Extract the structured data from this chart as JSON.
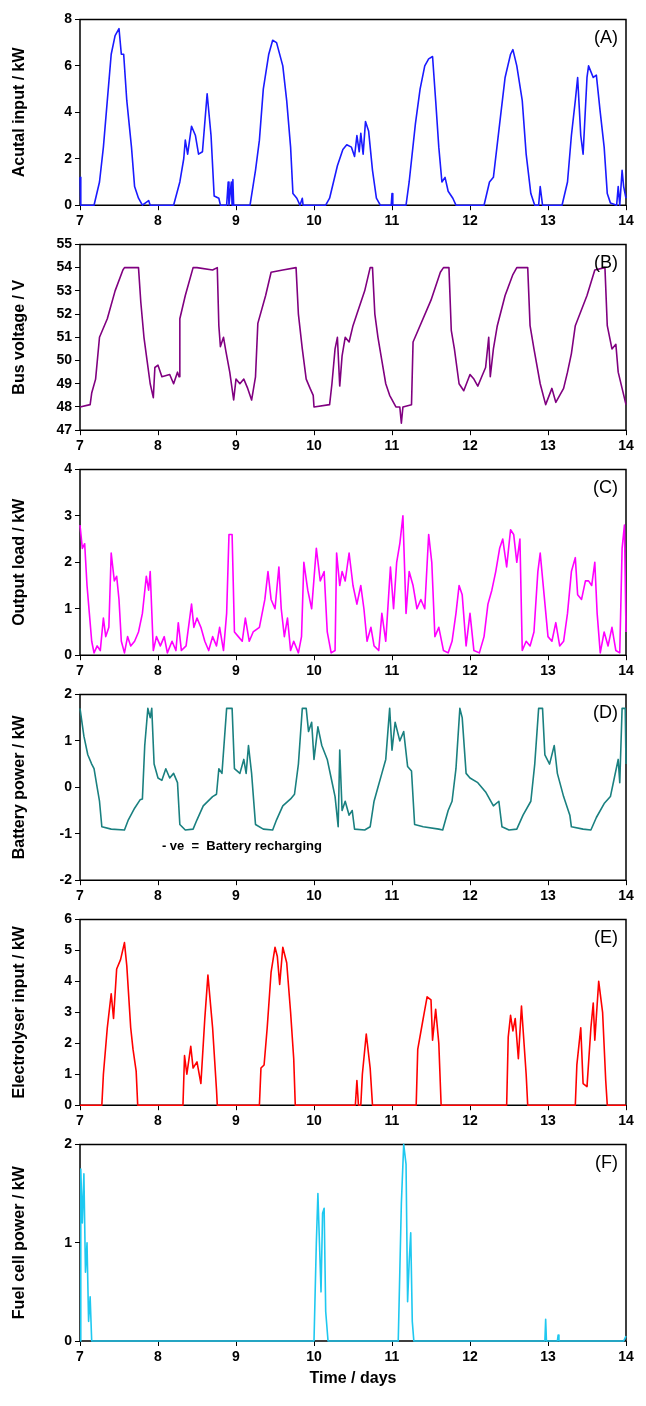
{
  "chart_data": [
    {
      "type": "line",
      "ylabel": "Acutal input / kW",
      "annotations": [
        "(A)"
      ],
      "xlim": [
        7,
        14
      ],
      "xticks": [
        7,
        8,
        9,
        10,
        11,
        12,
        13,
        14
      ],
      "ylim": [
        0,
        8
      ],
      "yticks": [
        0,
        2,
        4,
        6,
        8
      ],
      "x": [
        7.0,
        7.01,
        7.18,
        7.25,
        7.3,
        7.35,
        7.4,
        7.45,
        7.5,
        7.53,
        7.56,
        7.6,
        7.66,
        7.7,
        7.75,
        7.8,
        7.88,
        7.9,
        8.2,
        8.28,
        8.33,
        8.35,
        8.38,
        8.43,
        8.48,
        8.52,
        8.57,
        8.63,
        8.68,
        8.72,
        8.78,
        8.8,
        8.88,
        8.9,
        8.91,
        8.94,
        8.95,
        8.96,
        8.97,
        9.18,
        9.25,
        9.3,
        9.35,
        9.42,
        9.47,
        9.52,
        9.6,
        9.65,
        9.7,
        9.73,
        9.78,
        9.82,
        9.85,
        9.86,
        10.15,
        10.2,
        10.25,
        10.3,
        10.37,
        10.42,
        10.48,
        10.52,
        10.55,
        10.58,
        10.6,
        10.63,
        10.66,
        10.7,
        10.75,
        10.8,
        10.85,
        10.99,
        11.0,
        11.01,
        11.18,
        11.22,
        11.3,
        11.36,
        11.42,
        11.47,
        11.52,
        11.56,
        11.6,
        11.64,
        11.68,
        11.72,
        11.78,
        11.82,
        12.18,
        12.25,
        12.3,
        12.38,
        12.45,
        12.52,
        12.55,
        12.6,
        12.67,
        12.72,
        12.78,
        12.83,
        12.88,
        12.9,
        12.93,
        13.18,
        13.25,
        13.3,
        13.35,
        13.38,
        13.42,
        13.45,
        13.5,
        13.52,
        13.58,
        13.62,
        13.67,
        13.72,
        13.76,
        13.8,
        13.88,
        13.9,
        13.92,
        13.95,
        13.97,
        14.0
      ],
      "series": [
        {
          "color": "#1a1aff",
          "values": [
            1.2,
            0,
            0,
            1,
            2.5,
            4.5,
            6.5,
            7.3,
            7.6,
            6.5,
            6.5,
            4.5,
            2.5,
            0.8,
            0.3,
            0,
            0.2,
            0,
            0,
            1,
            2.0,
            2.8,
            2.2,
            3.4,
            3.0,
            2.2,
            2.3,
            4.8,
            3.0,
            0.4,
            0.3,
            0,
            0,
            1,
            0,
            1,
            0,
            1.1,
            0,
            0,
            1.5,
            2.8,
            5,
            6.5,
            7.1,
            7.0,
            6.0,
            4.5,
            2.5,
            0.5,
            0.3,
            0,
            0.3,
            0,
            0,
            0.3,
            1,
            1.7,
            2.4,
            2.6,
            2.5,
            2.1,
            3.0,
            2.3,
            3.1,
            2.2,
            3.6,
            3.2,
            1.5,
            0.3,
            0,
            0,
            0.5,
            0,
            0,
            1,
            3.5,
            5,
            6,
            6.3,
            6.4,
            4.5,
            2.5,
            1,
            1.2,
            0.6,
            0.3,
            0,
            0,
            1,
            1.2,
            3.5,
            5.5,
            6.5,
            6.7,
            6.0,
            4.5,
            2.2,
            0.5,
            0,
            0,
            0.8,
            0,
            0,
            1,
            3.0,
            4.5,
            5.5,
            3.0,
            2.2,
            5.5,
            6.0,
            5.5,
            5.6,
            4.0,
            2.5,
            0.5,
            0.1,
            0,
            0.8,
            0,
            1.5,
            0.8,
            0.3
          ]
        }
      ]
    },
    {
      "type": "line",
      "ylabel": "Bus voltage / V",
      "annotations": [
        "(B)"
      ],
      "xlim": [
        7,
        14
      ],
      "xticks": [
        7,
        8,
        9,
        10,
        11,
        12,
        13,
        14
      ],
      "ylim": [
        47,
        55
      ],
      "yticks": [
        47,
        48,
        49,
        50,
        51,
        52,
        53,
        54,
        55
      ],
      "x": [
        7.0,
        7.13,
        7.15,
        7.2,
        7.25,
        7.35,
        7.45,
        7.55,
        7.57,
        7.75,
        7.78,
        7.82,
        7.86,
        7.9,
        7.94,
        7.96,
        8.0,
        8.05,
        8.15,
        8.2,
        8.25,
        8.27,
        8.28,
        8.35,
        8.45,
        8.5,
        8.7,
        8.76,
        8.78,
        8.8,
        8.84,
        8.87,
        8.92,
        8.97,
        9.0,
        9.05,
        9.1,
        9.15,
        9.2,
        9.25,
        9.28,
        9.38,
        9.45,
        9.6,
        9.77,
        9.8,
        9.85,
        9.9,
        9.95,
        9.99,
        10.0,
        10.2,
        10.23,
        10.27,
        10.3,
        10.33,
        10.36,
        10.4,
        10.45,
        10.5,
        10.55,
        10.65,
        10.72,
        10.75,
        10.78,
        10.82,
        10.87,
        10.92,
        10.97,
        11.05,
        11.1,
        11.12,
        11.14,
        11.25,
        11.27,
        11.5,
        11.62,
        11.66,
        11.73,
        11.76,
        11.8,
        11.86,
        11.92,
        12.0,
        12.05,
        12.1,
        12.15,
        12.2,
        12.24,
        12.26,
        12.3,
        12.35,
        12.45,
        12.55,
        12.6,
        12.74,
        12.77,
        12.82,
        12.9,
        12.97,
        13.05,
        13.1,
        13.2,
        13.25,
        13.3,
        13.35,
        13.5,
        13.6,
        13.73,
        13.76,
        13.82,
        13.87,
        13.9,
        13.95,
        14.0
      ],
      "series": [
        {
          "color": "#800080",
          "values": [
            48,
            48.1,
            48.6,
            49.2,
            51,
            51.8,
            53,
            53.9,
            54,
            54,
            52.5,
            51,
            50,
            49,
            48.4,
            49.7,
            49.8,
            49.3,
            49.4,
            49.0,
            49.5,
            49.3,
            51.8,
            52.8,
            54,
            54,
            53.9,
            54,
            51.5,
            50.6,
            51,
            50.4,
            49.5,
            48.3,
            49.2,
            49.0,
            49.2,
            48.8,
            48.3,
            49.3,
            51.6,
            52.8,
            53.8,
            53.9,
            54,
            52,
            50.5,
            49.2,
            48.8,
            48.5,
            48,
            48.1,
            49,
            50.5,
            51,
            48.9,
            50.2,
            51,
            50.8,
            51.5,
            52,
            53,
            54,
            54,
            52,
            51,
            50,
            49.0,
            48.5,
            48.0,
            48.0,
            47.3,
            48.0,
            48.1,
            50.8,
            52.6,
            53.8,
            54,
            54,
            51.3,
            50.5,
            49.0,
            48.7,
            49.4,
            49.2,
            48.9,
            49.3,
            49.7,
            51,
            49.3,
            50.5,
            51.5,
            52.8,
            53.7,
            54,
            54,
            51.5,
            50.5,
            49.0,
            48.1,
            48.8,
            48.2,
            48.8,
            49.5,
            50.3,
            51.5,
            52.8,
            53.9,
            54,
            51.5,
            50.5,
            50.7,
            49.5,
            48.8,
            48.1
          ]
        }
      ]
    },
    {
      "type": "line",
      "ylabel": "Output load / kW",
      "annotations": [
        "(C)"
      ],
      "xlim": [
        7,
        14
      ],
      "xticks": [
        7,
        8,
        9,
        10,
        11,
        12,
        13,
        14
      ],
      "ylim": [
        0,
        4
      ],
      "yticks": [
        0,
        1,
        2,
        3,
        4
      ],
      "x": [
        7.0,
        7.03,
        7.06,
        7.09,
        7.12,
        7.15,
        7.18,
        7.22,
        7.26,
        7.3,
        7.33,
        7.37,
        7.4,
        7.44,
        7.47,
        7.5,
        7.53,
        7.57,
        7.61,
        7.65,
        7.7,
        7.75,
        7.8,
        7.85,
        7.88,
        7.9,
        7.94,
        7.98,
        8.03,
        8.08,
        8.12,
        8.18,
        8.23,
        8.26,
        8.3,
        8.36,
        8.43,
        8.46,
        8.5,
        8.55,
        8.6,
        8.65,
        8.7,
        8.75,
        8.79,
        8.84,
        8.88,
        8.91,
        8.95,
        8.98,
        9.03,
        9.08,
        9.12,
        9.17,
        9.22,
        9.3,
        9.37,
        9.41,
        9.45,
        9.5,
        9.55,
        9.58,
        9.62,
        9.66,
        9.7,
        9.74,
        9.8,
        9.84,
        9.87,
        9.92,
        9.97,
        10.03,
        10.08,
        10.13,
        10.17,
        10.22,
        10.27,
        10.29,
        10.33,
        10.36,
        10.4,
        10.45,
        10.5,
        10.55,
        10.6,
        10.64,
        10.68,
        10.73,
        10.77,
        10.83,
        10.87,
        10.92,
        10.98,
        11.02,
        11.06,
        11.1,
        11.14,
        11.18,
        11.22,
        11.27,
        11.32,
        11.37,
        11.42,
        11.47,
        11.51,
        11.55,
        11.6,
        11.66,
        11.72,
        11.77,
        11.82,
        11.86,
        11.9,
        11.95,
        12.0,
        12.05,
        12.12,
        12.18,
        12.23,
        12.28,
        12.33,
        12.38,
        12.42,
        12.47,
        12.52,
        12.56,
        12.6,
        12.64,
        12.67,
        12.72,
        12.77,
        12.82,
        12.87,
        12.9,
        12.95,
        13.0,
        13.05,
        13.1,
        13.15,
        13.2,
        13.25,
        13.3,
        13.35,
        13.38,
        13.43,
        13.48,
        13.52,
        13.56,
        13.6,
        13.63,
        13.67,
        13.72,
        13.77,
        13.82,
        13.87,
        13.92,
        13.95,
        13.98,
        14.0
      ],
      "series": [
        {
          "color": "#ff00ff",
          "values": [
            2.8,
            2.3,
            2.4,
            1.5,
            0.9,
            0.3,
            0.05,
            0.2,
            0.1,
            0.8,
            0.4,
            0.6,
            2.2,
            1.6,
            1.7,
            1.2,
            0.3,
            0.05,
            0.4,
            0.2,
            0.3,
            0.5,
            0.9,
            1.7,
            1.4,
            1.8,
            0.1,
            0.4,
            0.2,
            0.4,
            0.05,
            0.3,
            0.1,
            0.7,
            0.1,
            0.2,
            1.1,
            0.6,
            0.8,
            0.6,
            0.3,
            0.1,
            0.4,
            0.2,
            0.6,
            0.1,
            0.9,
            2.6,
            2.6,
            0.5,
            0.4,
            0.3,
            0.8,
            0.3,
            0.5,
            0.6,
            1.2,
            1.8,
            1.2,
            1.0,
            1.9,
            1.0,
            0.4,
            0.8,
            0.1,
            0.3,
            0.05,
            0.4,
            2.0,
            1.4,
            1.0,
            2.3,
            1.6,
            1.8,
            0.5,
            0.05,
            0.1,
            2.2,
            1.5,
            1.8,
            1.6,
            2.2,
            1.5,
            1.1,
            1.5,
            1.0,
            0.3,
            0.6,
            0.2,
            0.1,
            0.9,
            0.3,
            1.9,
            1.0,
            2.0,
            2.4,
            3.0,
            0.9,
            1.8,
            1.5,
            1.0,
            1.2,
            1.0,
            2.6,
            2.0,
            0.4,
            0.6,
            0.1,
            0.05,
            0.3,
            0.9,
            1.5,
            1.3,
            0.2,
            0.9,
            0.1,
            0.05,
            0.4,
            1.1,
            1.4,
            1.8,
            2.3,
            2.5,
            1.9,
            2.7,
            2.6,
            2.0,
            2.5,
            0.1,
            0.3,
            0.2,
            0.5,
            1.8,
            2.2,
            1.3,
            0.4,
            0.3,
            0.7,
            0.2,
            0.3,
            0.9,
            1.8,
            2.1,
            1.3,
            1.2,
            1.6,
            1.6,
            1.5,
            2.0,
            0.9,
            0.05,
            0.5,
            0.2,
            0.6,
            0.1,
            0.05,
            2.3,
            2.8,
            0.5
          ]
        }
      ]
    },
    {
      "type": "line",
      "ylabel": "Battery power / kW",
      "annotations": [
        "(D)",
        "- ve  =  Battery recharging"
      ],
      "xlim": [
        7,
        14
      ],
      "xticks": [
        7,
        8,
        9,
        10,
        11,
        12,
        13,
        14
      ],
      "ylim": [
        -2,
        2
      ],
      "yticks": [
        -2,
        -1,
        0,
        1,
        2
      ],
      "x": [
        7.0,
        7.05,
        7.1,
        7.15,
        7.18,
        7.22,
        7.25,
        7.28,
        7.4,
        7.57,
        7.62,
        7.7,
        7.77,
        7.8,
        7.83,
        7.87,
        7.9,
        7.92,
        7.95,
        8.0,
        8.05,
        8.1,
        8.15,
        8.2,
        8.25,
        8.28,
        8.35,
        8.45,
        8.5,
        8.58,
        8.7,
        8.75,
        8.78,
        8.82,
        8.88,
        8.95,
        8.98,
        9.05,
        9.1,
        9.13,
        9.16,
        9.2,
        9.25,
        9.35,
        9.47,
        9.52,
        9.6,
        9.7,
        9.75,
        9.8,
        9.85,
        9.9,
        9.93,
        9.97,
        10.0,
        10.05,
        10.1,
        10.17,
        10.22,
        10.27,
        10.31,
        10.33,
        10.36,
        10.4,
        10.45,
        10.49,
        10.52,
        10.65,
        10.72,
        10.77,
        10.82,
        10.87,
        10.92,
        10.97,
        11.0,
        11.04,
        11.1,
        11.15,
        11.2,
        11.25,
        11.29,
        11.4,
        11.6,
        11.65,
        11.72,
        11.77,
        11.82,
        11.87,
        11.9,
        11.95,
        12.0,
        12.1,
        12.2,
        12.3,
        12.37,
        12.41,
        12.5,
        12.6,
        12.68,
        12.78,
        12.83,
        12.88,
        12.93,
        12.96,
        13.02,
        13.08,
        13.12,
        13.2,
        13.28,
        13.3,
        13.45,
        13.55,
        13.62,
        13.72,
        13.8,
        13.85,
        13.9,
        13.92,
        13.95,
        13.99,
        14.0
      ],
      "series": [
        {
          "color": "#1a8080",
          "values": [
            1.7,
            1.1,
            0.7,
            0.5,
            0.4,
            0,
            -0.3,
            -0.85,
            -0.9,
            -0.92,
            -0.7,
            -0.45,
            -0.27,
            -0.25,
            0.9,
            1.7,
            1.5,
            1.7,
            0.5,
            0.2,
            0.15,
            0.4,
            0.2,
            0.3,
            0.1,
            -0.8,
            -0.92,
            -0.9,
            -0.7,
            -0.4,
            -0.2,
            -0.15,
            0.4,
            0.3,
            1.7,
            1.7,
            0.4,
            0.3,
            0.6,
            0.3,
            0.9,
            0.3,
            -0.8,
            -0.9,
            -0.92,
            -0.7,
            -0.4,
            -0.25,
            -0.15,
            0.5,
            1.7,
            1.7,
            1.2,
            1.4,
            0.6,
            1.3,
            0.9,
            0.6,
            0.2,
            -0.2,
            -0.85,
            0.8,
            -0.5,
            -0.3,
            -0.6,
            -0.5,
            -0.9,
            -0.92,
            -0.85,
            -0.3,
            0.0,
            0.3,
            0.6,
            1.7,
            0.8,
            1.4,
            1.0,
            1.2,
            0.45,
            0.35,
            -0.8,
            -0.85,
            -0.9,
            -0.92,
            -0.5,
            -0.3,
            0.4,
            1.7,
            1.5,
            0.3,
            0.2,
            0.1,
            -0.1,
            -0.4,
            -0.3,
            -0.85,
            -0.92,
            -0.9,
            -0.6,
            -0.3,
            0.5,
            1.7,
            1.7,
            0.7,
            0.5,
            0.9,
            0.3,
            -0.2,
            -0.6,
            -0.85,
            -0.9,
            -0.92,
            -0.65,
            -0.35,
            -0.2,
            0.2,
            0.6,
            0.1,
            1.7,
            1.7,
            0.5
          ]
        }
      ]
    },
    {
      "type": "line",
      "ylabel": "Electrolyser input / kW",
      "annotations": [
        "(E)"
      ],
      "xlim": [
        7,
        14
      ],
      "xticks": [
        7,
        8,
        9,
        10,
        11,
        12,
        13,
        14
      ],
      "ylim": [
        0,
        6
      ],
      "yticks": [
        0,
        1,
        2,
        3,
        4,
        5,
        6
      ],
      "x": [
        7.0,
        7.28,
        7.3,
        7.35,
        7.4,
        7.43,
        7.47,
        7.52,
        7.57,
        7.6,
        7.65,
        7.68,
        7.72,
        7.74,
        8.32,
        8.34,
        8.37,
        8.42,
        8.45,
        8.5,
        8.55,
        8.6,
        8.64,
        8.7,
        8.75,
        8.76,
        9.3,
        9.32,
        9.36,
        9.4,
        9.45,
        9.5,
        9.53,
        9.56,
        9.6,
        9.65,
        9.7,
        9.74,
        9.76,
        10.53,
        10.55,
        10.57,
        10.6,
        10.62,
        10.67,
        10.72,
        10.75,
        11.31,
        11.33,
        11.4,
        11.45,
        11.5,
        11.52,
        11.56,
        11.6,
        11.63,
        12.47,
        12.49,
        12.52,
        12.55,
        12.58,
        12.62,
        12.66,
        12.72,
        12.74,
        13.35,
        13.37,
        13.42,
        13.45,
        13.5,
        13.55,
        13.58,
        13.6,
        13.65,
        13.7,
        13.74,
        13.76,
        14.0
      ],
      "series": [
        {
          "color": "#ff0000",
          "values": [
            0,
            0,
            1,
            2.5,
            3.6,
            2.8,
            4.4,
            4.7,
            5.25,
            4.5,
            2.5,
            1.8,
            1.1,
            0,
            0,
            1.6,
            1.0,
            1.9,
            1.2,
            1.4,
            0.7,
            2.8,
            4.2,
            2.5,
            0.5,
            0,
            0,
            1.2,
            1.3,
            2.5,
            4.3,
            5.1,
            4.8,
            3.9,
            5.1,
            4.6,
            3.0,
            1.5,
            0,
            0,
            0.8,
            0,
            0,
            1.0,
            2.3,
            1.2,
            0,
            0,
            1.8,
            2.8,
            3.5,
            3.4,
            2.1,
            3.1,
            2.0,
            0,
            0,
            2.2,
            2.9,
            2.4,
            2.8,
            1.5,
            3.2,
            1.0,
            0,
            0,
            1.3,
            2.5,
            0.7,
            0.6,
            2.5,
            3.3,
            2.1,
            4.0,
            3.0,
            0.8,
            0,
            0
          ]
        }
      ]
    },
    {
      "type": "line",
      "ylabel": "Fuel cell power / kW",
      "xlabel": "Time / days",
      "annotations": [
        "(F)"
      ],
      "xlim": [
        7,
        14
      ],
      "xticks": [
        7,
        8,
        9,
        10,
        11,
        12,
        13,
        14
      ],
      "ylim": [
        0,
        2
      ],
      "yticks": [
        0,
        1,
        2
      ],
      "x": [
        7.0,
        7.01,
        7.03,
        7.05,
        7.07,
        7.09,
        7.11,
        7.13,
        7.15,
        10.0,
        10.03,
        10.05,
        10.07,
        10.09,
        10.11,
        10.13,
        10.15,
        10.18,
        11.08,
        11.12,
        11.15,
        11.18,
        11.2,
        11.22,
        11.24,
        11.26,
        11.28,
        12.96,
        12.97,
        12.98,
        13.12,
        13.13,
        13.14,
        13.97,
        14.0
      ],
      "series": [
        {
          "color": "#1ec8f0",
          "values": [
            0,
            1.75,
            1.2,
            1.7,
            0.7,
            1.0,
            0.2,
            0.45,
            0,
            0,
            1.0,
            1.5,
            1.0,
            0.5,
            1.3,
            1.35,
            0.3,
            0,
            0,
            1.4,
            2.0,
            1.8,
            0.4,
            0.8,
            1.1,
            0.2,
            0,
            0,
            0.22,
            0,
            0,
            0.06,
            0,
            0,
            0.05
          ]
        }
      ]
    }
  ]
}
